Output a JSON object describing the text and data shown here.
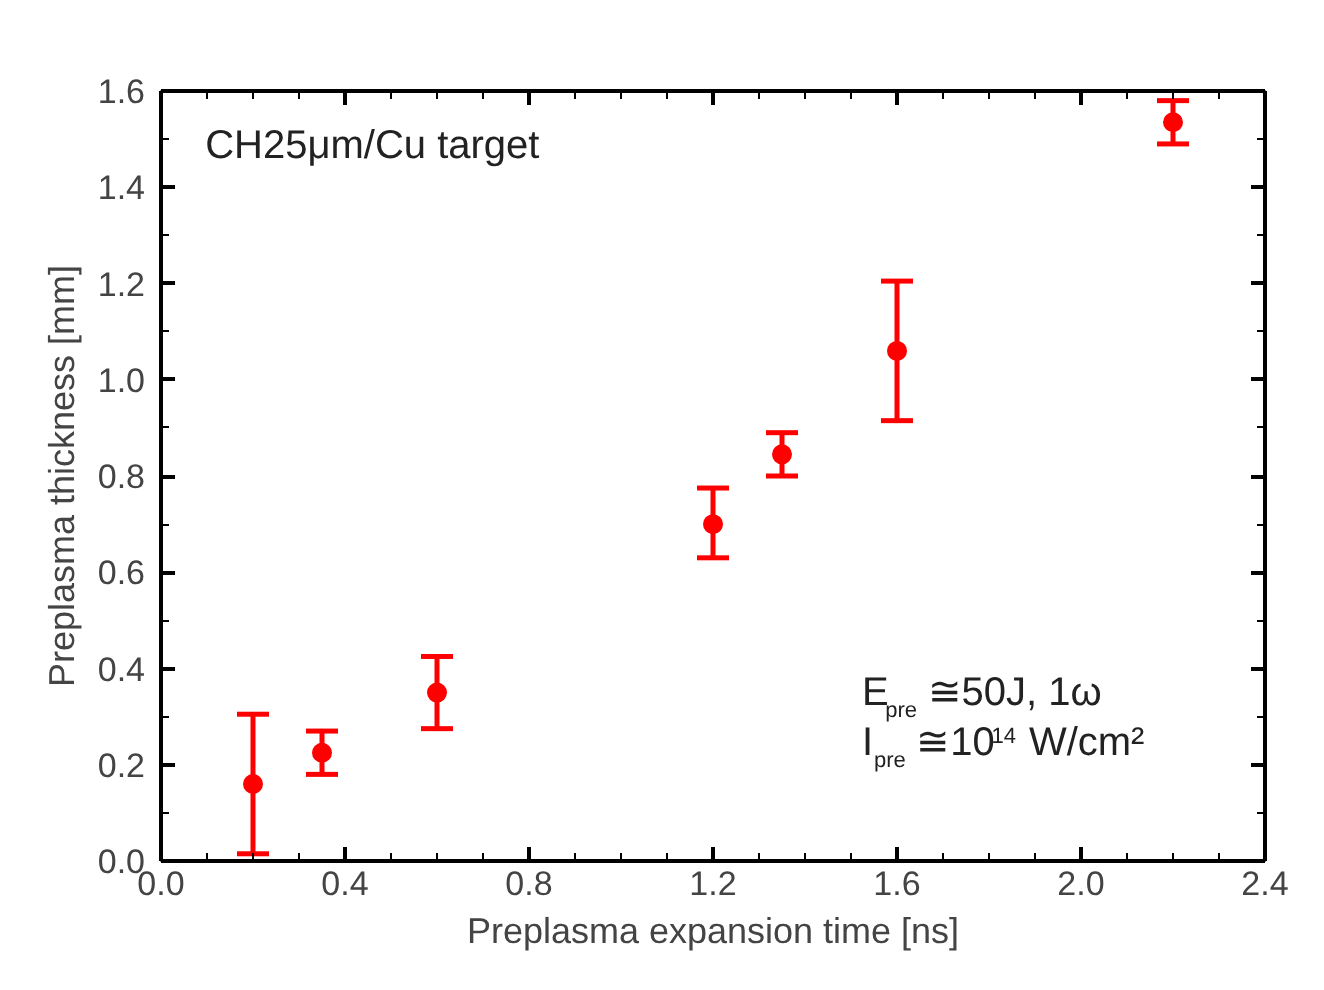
{
  "chart_data": {
    "type": "scatter",
    "xlabel": "Preplasma expansion time [ns]",
    "ylabel": "Preplasma thickness [mm]",
    "x": [
      0.2,
      0.35,
      0.6,
      1.2,
      1.35,
      1.6,
      2.2
    ],
    "series": [
      {
        "color": "#ff0000",
        "values": [
          0.16,
          0.225,
          0.35,
          0.7,
          0.845,
          1.06,
          1.535
        ],
        "errors": [
          [
            0.015,
            0.305
          ],
          [
            0.18,
            0.27
          ],
          [
            0.275,
            0.425
          ],
          [
            0.63,
            0.775
          ],
          [
            0.8,
            0.89
          ],
          [
            0.915,
            1.205
          ],
          [
            1.49,
            1.58
          ]
        ]
      }
    ],
    "xlim": [
      0.0,
      2.4
    ],
    "xticks": [
      {
        "value": 0.0,
        "label": "0.0"
      },
      0.4,
      0.8,
      1.2,
      1.6,
      {
        "value": 2.0,
        "label": "2.0"
      },
      2.4
    ],
    "ylim": [
      0.0,
      1.6
    ],
    "yticks": [
      {
        "value": 0.0,
        "label": "0.0"
      },
      0.2,
      0.4,
      0.6,
      0.8,
      {
        "value": 1.0,
        "label": "1.0"
      },
      1.2,
      1.4,
      1.6
    ],
    "marker": "circle",
    "annotations": [
      "CH25μm/Cu target",
      "E$_{pre}$≅50J, 1ω",
      "I$_{pre}$≅10$^{14}$ W/cm²"
    ]
  }
}
